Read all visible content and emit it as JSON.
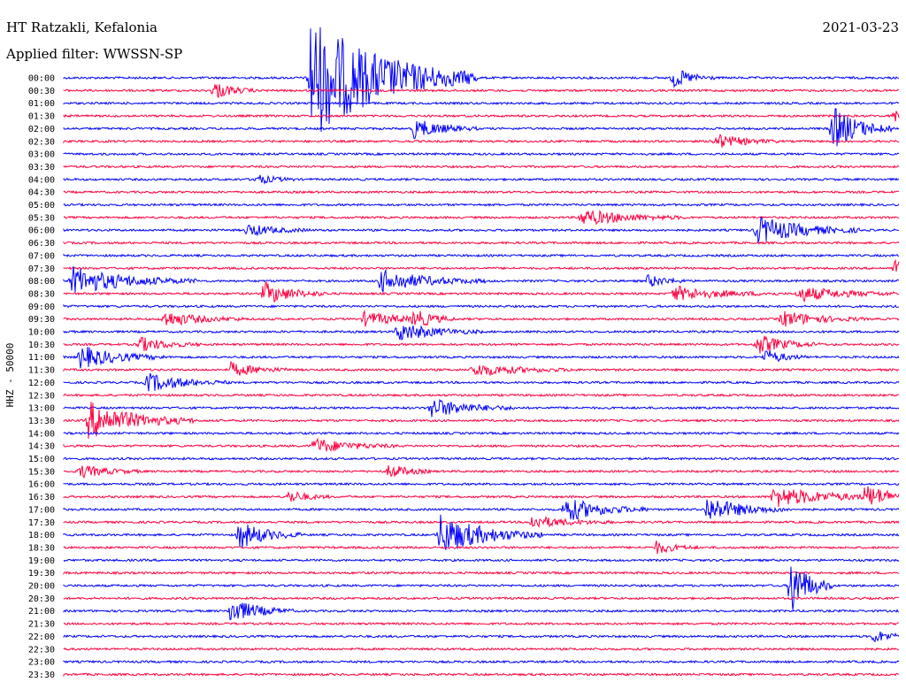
{
  "station": "HT Ratzakli, Kefalonia",
  "date": "2021-03-23",
  "filter": "Applied filter: WWSSN-SP",
  "ylabel": "HHZ - 50000",
  "colors": {
    "odd": "#0000ff",
    "even": "#ff0040"
  },
  "chart_data": {
    "type": "line",
    "title": "HT Ratzakli, Kefalonia",
    "ylabel": "HHZ - 50000",
    "rows": [
      "00:00",
      "00:30",
      "01:00",
      "01:30",
      "02:00",
      "02:30",
      "03:00",
      "03:30",
      "04:00",
      "04:30",
      "05:00",
      "05:30",
      "06:00",
      "06:30",
      "07:00",
      "07:30",
      "08:00",
      "08:30",
      "09:00",
      "09:30",
      "10:00",
      "10:30",
      "11:00",
      "11:30",
      "12:00",
      "12:30",
      "13:00",
      "13:30",
      "14:00",
      "14:30",
      "15:00",
      "15:30",
      "16:00",
      "16:30",
      "17:00",
      "17:30",
      "18:00",
      "18:30",
      "19:00",
      "19:30",
      "20:00",
      "20:30",
      "21:00",
      "21:30",
      "22:00",
      "22:30",
      "23:00",
      "23:30"
    ],
    "row_colors": [
      "blue",
      "red"
    ],
    "events": [
      {
        "row": "00:00",
        "t": 0.295,
        "amp": 10,
        "dur": 0.08
      },
      {
        "row": "00:00",
        "t": 0.73,
        "amp": 1.6,
        "dur": 0.02
      },
      {
        "row": "00:30",
        "t": 0.18,
        "amp": 1.4,
        "dur": 0.02
      },
      {
        "row": "01:30",
        "t": 0.995,
        "amp": 1.0,
        "dur": 0.02
      },
      {
        "row": "02:00",
        "t": 0.42,
        "amp": 1.6,
        "dur": 0.03
      },
      {
        "row": "02:00",
        "t": 0.92,
        "amp": 3.5,
        "dur": 0.03
      },
      {
        "row": "02:30",
        "t": 0.78,
        "amp": 1.2,
        "dur": 0.03
      },
      {
        "row": "04:00",
        "t": 0.23,
        "amp": 0.8,
        "dur": 0.02
      },
      {
        "row": "05:30",
        "t": 0.62,
        "amp": 1.3,
        "dur": 0.05
      },
      {
        "row": "06:00",
        "t": 0.22,
        "amp": 1.0,
        "dur": 0.03
      },
      {
        "row": "06:00",
        "t": 0.83,
        "amp": 2.2,
        "dur": 0.05
      },
      {
        "row": "07:30",
        "t": 0.995,
        "amp": 1.3,
        "dur": 0.02
      },
      {
        "row": "08:00",
        "t": 0.01,
        "amp": 2.2,
        "dur": 0.06
      },
      {
        "row": "08:00",
        "t": 0.38,
        "amp": 1.8,
        "dur": 0.05
      },
      {
        "row": "08:00",
        "t": 0.7,
        "amp": 1.0,
        "dur": 0.02
      },
      {
        "row": "08:30",
        "t": 0.24,
        "amp": 1.8,
        "dur": 0.03
      },
      {
        "row": "08:30",
        "t": 0.73,
        "amp": 1.2,
        "dur": 0.05
      },
      {
        "row": "08:30",
        "t": 0.88,
        "amp": 1.2,
        "dur": 0.05
      },
      {
        "row": "09:30",
        "t": 0.12,
        "amp": 1.2,
        "dur": 0.04
      },
      {
        "row": "09:30",
        "t": 0.36,
        "amp": 1.1,
        "dur": 0.04
      },
      {
        "row": "09:30",
        "t": 0.42,
        "amp": 1.3,
        "dur": 0.02
      },
      {
        "row": "09:30",
        "t": 0.86,
        "amp": 1.3,
        "dur": 0.04
      },
      {
        "row": "10:00",
        "t": 0.4,
        "amp": 1.5,
        "dur": 0.04
      },
      {
        "row": "10:30",
        "t": 0.09,
        "amp": 1.2,
        "dur": 0.03
      },
      {
        "row": "10:30",
        "t": 0.83,
        "amp": 1.6,
        "dur": 0.03
      },
      {
        "row": "11:00",
        "t": 0.02,
        "amp": 1.8,
        "dur": 0.04
      },
      {
        "row": "11:00",
        "t": 0.84,
        "amp": 1.2,
        "dur": 0.02
      },
      {
        "row": "11:30",
        "t": 0.2,
        "amp": 1.1,
        "dur": 0.03
      },
      {
        "row": "11:30",
        "t": 0.49,
        "amp": 1.0,
        "dur": 0.05
      },
      {
        "row": "12:00",
        "t": 0.1,
        "amp": 1.5,
        "dur": 0.04
      },
      {
        "row": "13:00",
        "t": 0.44,
        "amp": 1.6,
        "dur": 0.04
      },
      {
        "row": "13:30",
        "t": 0.03,
        "amp": 3.0,
        "dur": 0.05
      },
      {
        "row": "14:30",
        "t": 0.3,
        "amp": 1.2,
        "dur": 0.04
      },
      {
        "row": "15:30",
        "t": 0.02,
        "amp": 1.0,
        "dur": 0.03
      },
      {
        "row": "15:30",
        "t": 0.39,
        "amp": 1.2,
        "dur": 0.02
      },
      {
        "row": "16:30",
        "t": 0.27,
        "amp": 1.0,
        "dur": 0.02
      },
      {
        "row": "16:30",
        "t": 0.85,
        "amp": 1.6,
        "dur": 0.06
      },
      {
        "row": "16:30",
        "t": 0.96,
        "amp": 1.6,
        "dur": 0.03
      },
      {
        "row": "17:00",
        "t": 0.6,
        "amp": 2.0,
        "dur": 0.04
      },
      {
        "row": "17:00",
        "t": 0.77,
        "amp": 2.0,
        "dur": 0.04
      },
      {
        "row": "17:30",
        "t": 0.56,
        "amp": 1.0,
        "dur": 0.04
      },
      {
        "row": "18:00",
        "t": 0.21,
        "amp": 2.2,
        "dur": 0.03
      },
      {
        "row": "18:00",
        "t": 0.45,
        "amp": 3.2,
        "dur": 0.05
      },
      {
        "row": "18:30",
        "t": 0.71,
        "amp": 1.0,
        "dur": 0.02
      },
      {
        "row": "20:00",
        "t": 0.87,
        "amp": 5.0,
        "dur": 0.02
      },
      {
        "row": "21:00",
        "t": 0.2,
        "amp": 2.0,
        "dur": 0.03
      },
      {
        "row": "22:00",
        "t": 0.97,
        "amp": 1.0,
        "dur": 0.02
      }
    ]
  }
}
